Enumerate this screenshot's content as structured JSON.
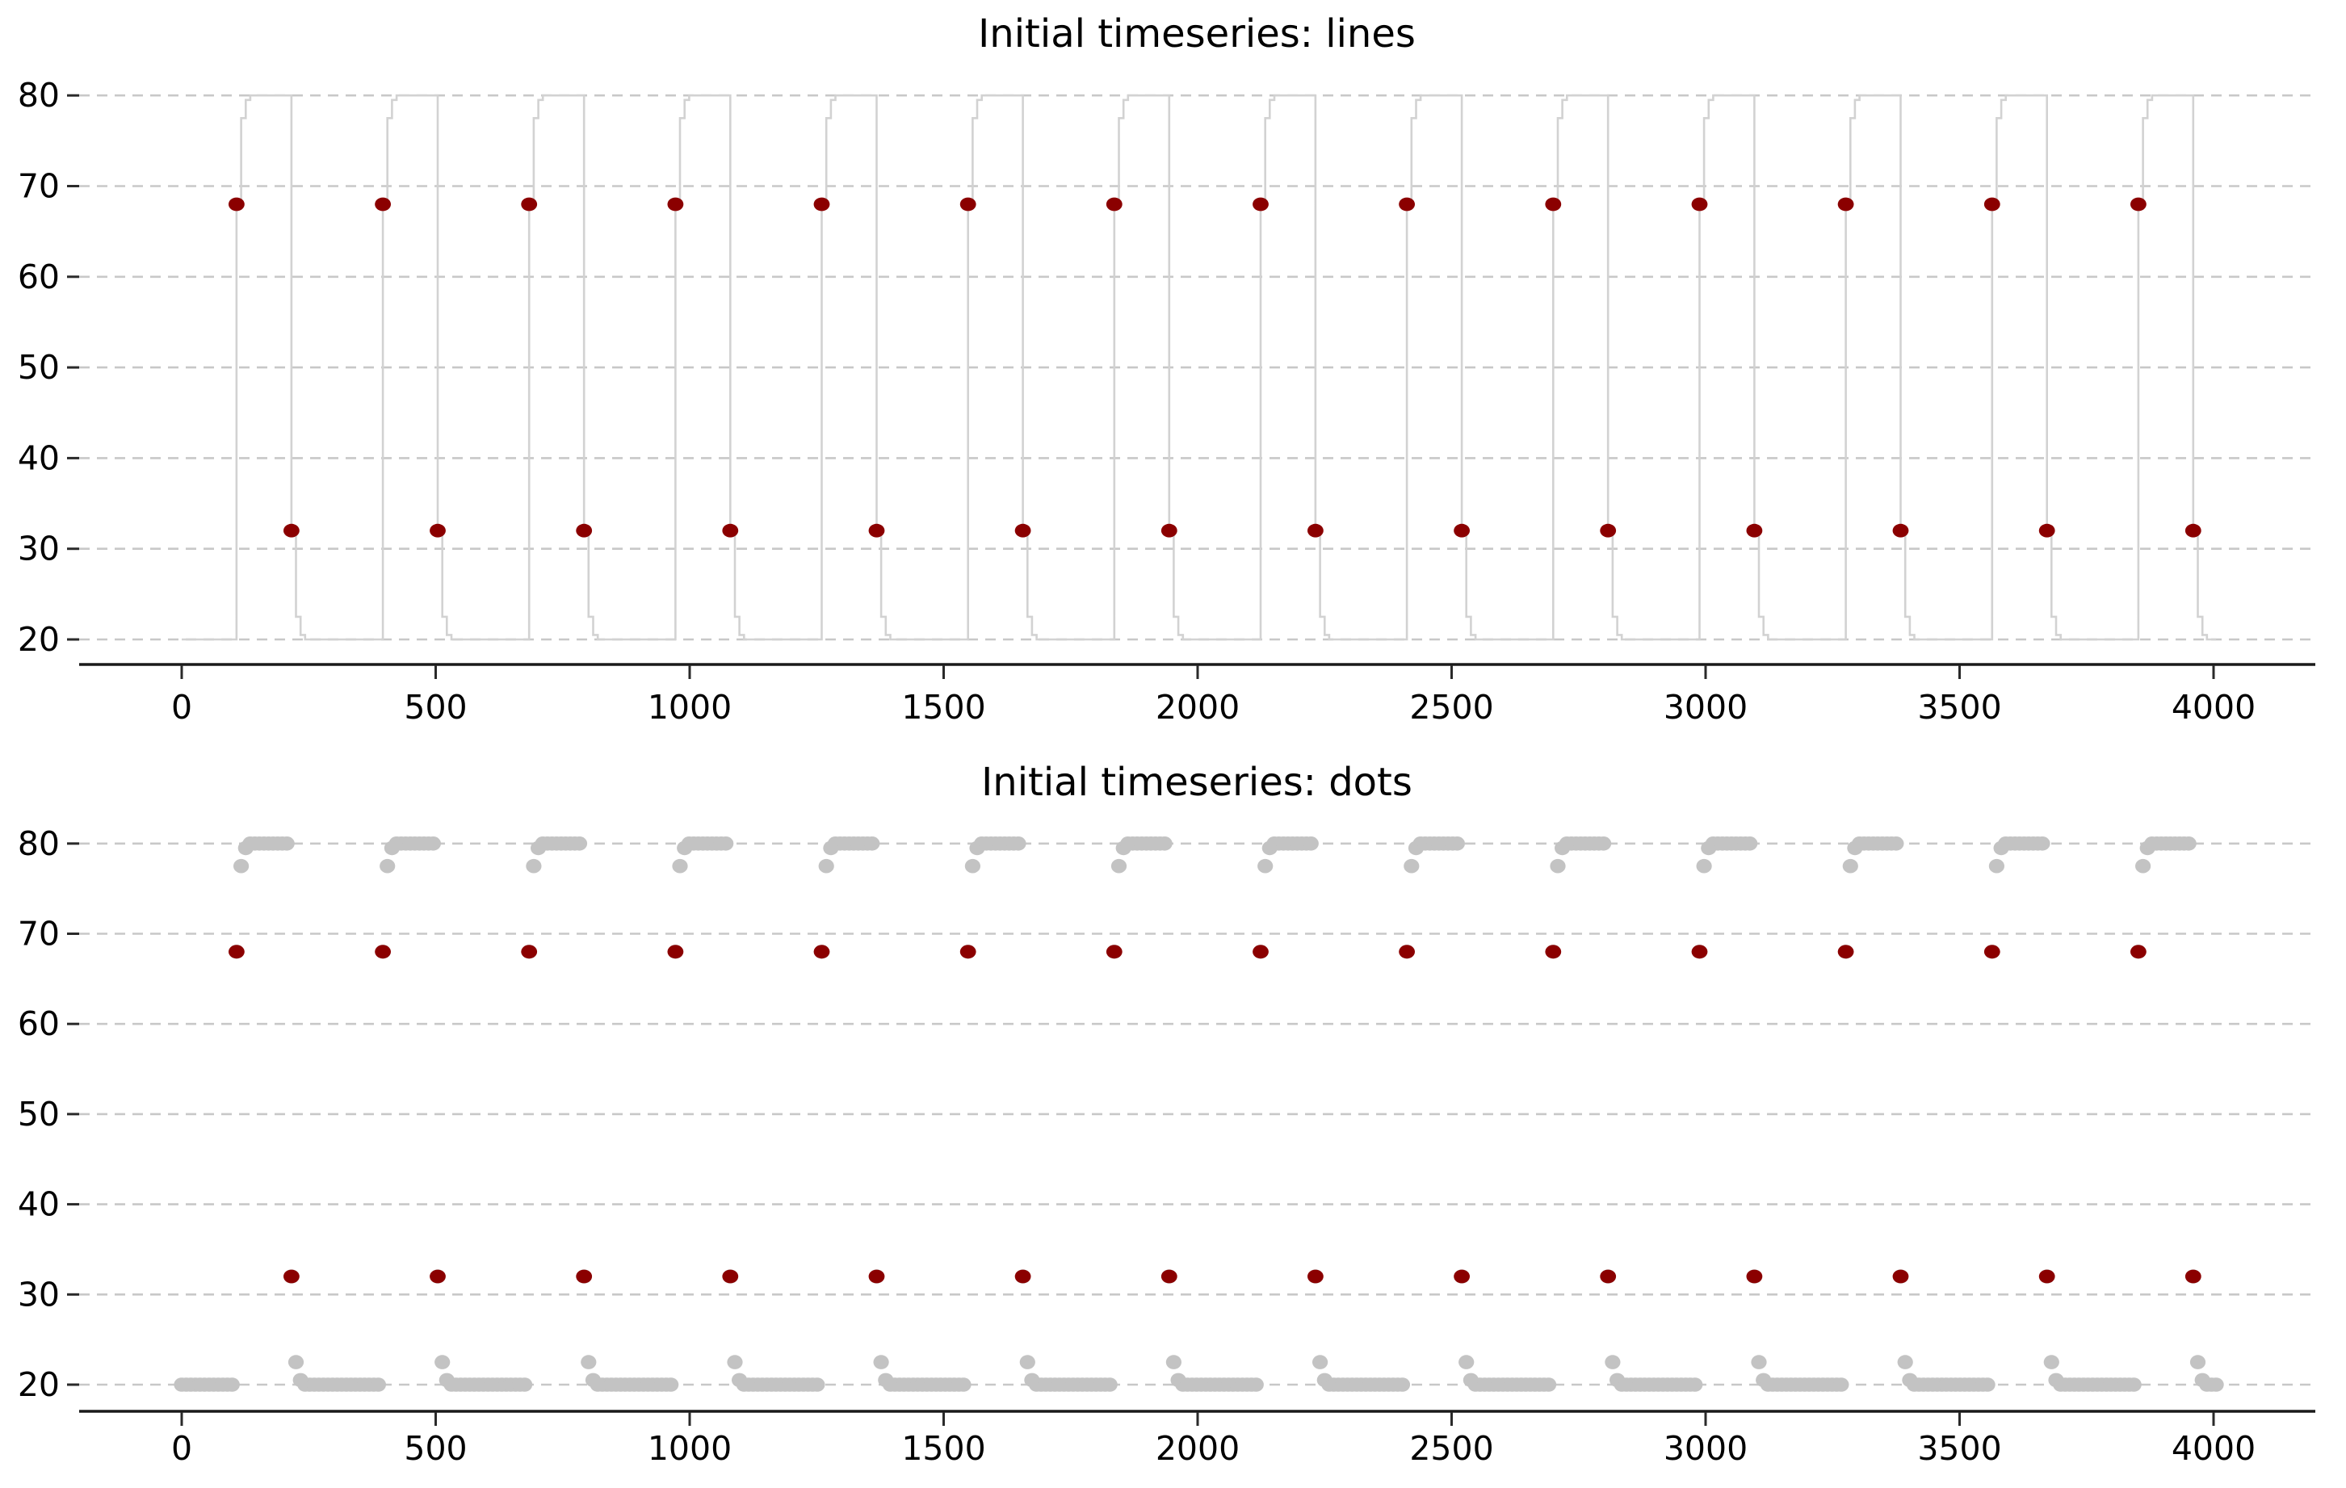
{
  "figure": {
    "background": "#ffffff",
    "style": {
      "grid_color": "#c8c8c8",
      "spine_color": "#1a1a1a",
      "tick_color": "#2a2a2a",
      "text_color": "#000000"
    }
  },
  "chart_data": [
    {
      "type": "line",
      "title": "Initial timeseries: lines",
      "x_ticks": [
        0,
        500,
        1000,
        1500,
        2000,
        2500,
        3000,
        3500,
        4000
      ],
      "y_ticks": [
        20,
        30,
        40,
        50,
        60,
        70,
        80
      ],
      "xlim": [
        -200,
        4200
      ],
      "ylim": [
        17,
        83
      ],
      "grid": true,
      "legend": null,
      "line_color": "#d2d2d2",
      "marker_color": "#8b0000",
      "series": {
        "x_start": 0,
        "x_end": 4005,
        "sample_step": 9,
        "period": 288,
        "first_rise_x": 108,
        "fall_offset": 108,
        "low": 20,
        "high": 80,
        "num_cycles": 14,
        "rise_profile": [
          [
            0,
            68
          ],
          [
            9,
            77.5
          ],
          [
            18,
            79.5
          ],
          [
            27,
            80
          ]
        ],
        "fall_profile": [
          [
            0,
            32
          ],
          [
            9,
            22.5
          ],
          [
            18,
            20.5
          ],
          [
            27,
            20
          ]
        ]
      },
      "red_markers": {
        "rise_y": 68,
        "fall_y": 32,
        "rise_x": [
          108,
          396,
          684,
          972,
          1260,
          1548,
          1836,
          2124,
          2412,
          2700,
          2988,
          3276,
          3564,
          3852
        ],
        "fall_x": [
          216,
          504,
          792,
          1080,
          1368,
          1656,
          1944,
          2232,
          2520,
          2808,
          3096,
          3384,
          3672,
          3960
        ]
      }
    },
    {
      "type": "scatter",
      "title": "Initial timeseries: dots",
      "x_ticks": [
        0,
        500,
        1000,
        1500,
        2000,
        2500,
        3000,
        3500,
        4000
      ],
      "y_ticks": [
        20,
        30,
        40,
        50,
        60,
        70,
        80
      ],
      "xlim": [
        -200,
        4200
      ],
      "ylim": [
        17,
        83
      ],
      "grid": true,
      "legend": null,
      "dot_color": "#c3c3c3",
      "marker_color": "#8b0000",
      "series": {
        "x_start": 0,
        "x_end": 4005,
        "sample_step": 9,
        "period": 288,
        "first_rise_x": 108,
        "fall_offset": 108,
        "low": 20,
        "high": 80,
        "num_cycles": 14,
        "rise_profile": [
          [
            0,
            68
          ],
          [
            9,
            77.5
          ],
          [
            18,
            79.5
          ],
          [
            27,
            80
          ]
        ],
        "fall_profile": [
          [
            0,
            32
          ],
          [
            9,
            22.5
          ],
          [
            18,
            20.5
          ],
          [
            27,
            20
          ]
        ]
      },
      "red_markers": {
        "rise_y": 68,
        "fall_y": 32,
        "rise_x": [
          108,
          396,
          684,
          972,
          1260,
          1548,
          1836,
          2124,
          2412,
          2700,
          2988,
          3276,
          3564,
          3852
        ],
        "fall_x": [
          216,
          504,
          792,
          1080,
          1368,
          1656,
          1944,
          2232,
          2520,
          2808,
          3096,
          3384,
          3672,
          3960
        ]
      }
    }
  ]
}
